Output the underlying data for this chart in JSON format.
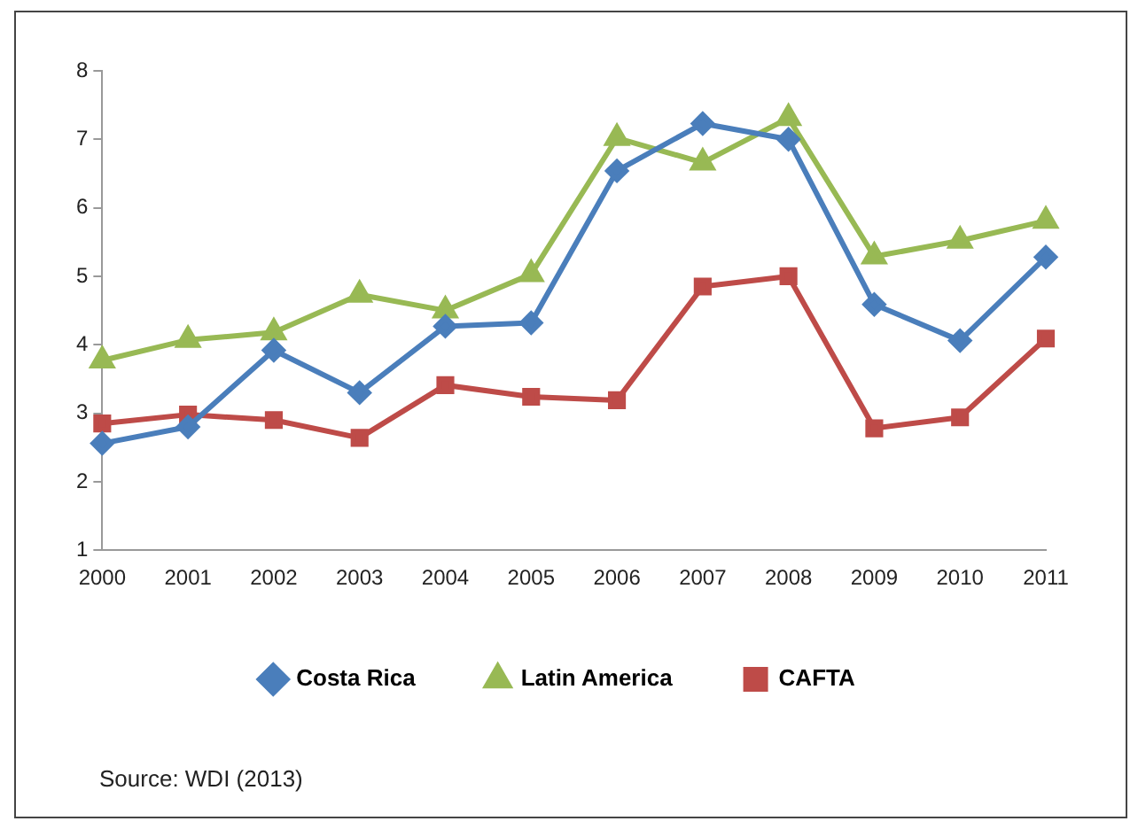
{
  "chart_data": {
    "type": "line",
    "categories": [
      "2000",
      "2001",
      "2002",
      "2003",
      "2004",
      "2005",
      "2006",
      "2007",
      "2008",
      "2009",
      "2010",
      "2011"
    ],
    "series": [
      {
        "name": "Costa Rica",
        "color": "#4a7ebb",
        "marker": "diamond",
        "values": [
          2.56,
          2.8,
          3.92,
          3.3,
          4.27,
          4.32,
          6.54,
          7.23,
          7.0,
          4.59,
          4.06,
          5.28
        ]
      },
      {
        "name": "Latin America",
        "color": "#98b954",
        "marker": "triangle",
        "values": [
          3.77,
          4.07,
          4.18,
          4.73,
          4.5,
          5.03,
          7.02,
          6.66,
          7.31,
          5.29,
          5.52,
          5.81
        ]
      },
      {
        "name": "CAFTA",
        "color": "#be4b48",
        "marker": "square",
        "values": [
          2.85,
          2.98,
          2.9,
          2.64,
          3.41,
          3.24,
          3.19,
          4.85,
          5.0,
          2.78,
          2.94,
          4.09
        ]
      }
    ],
    "ylim": [
      1,
      8
    ],
    "yticks": [
      1,
      2,
      3,
      4,
      5,
      6,
      7,
      8
    ],
    "grid": false,
    "legend": "bottom",
    "annotations": [
      "Source: WDI (2013)"
    ]
  }
}
